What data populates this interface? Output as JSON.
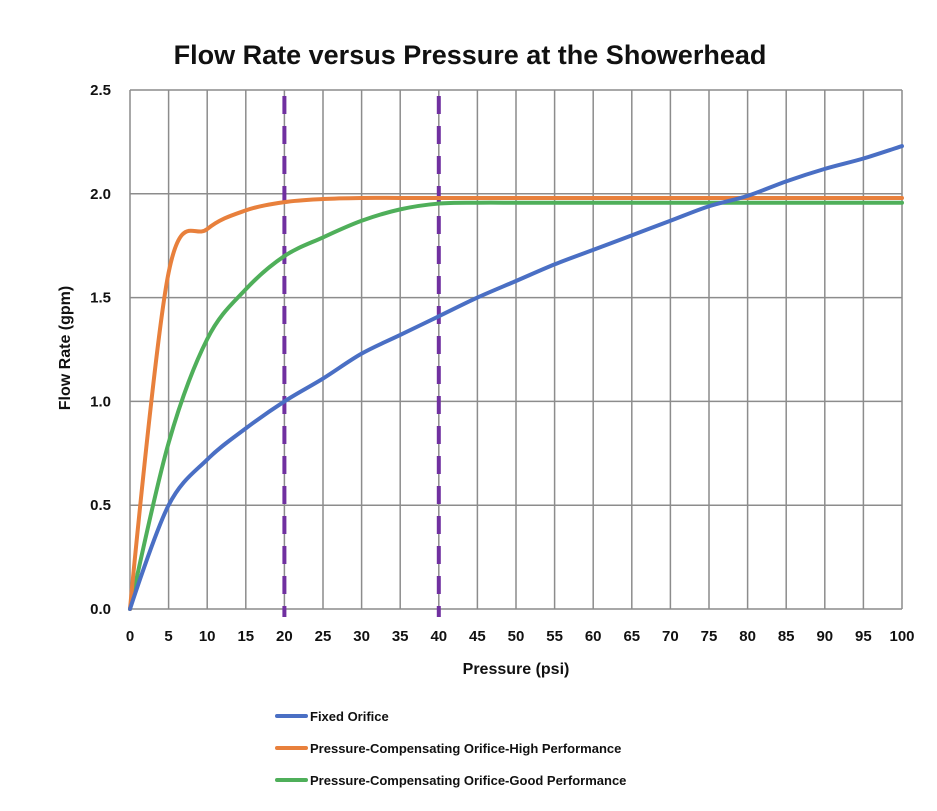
{
  "chart_data": {
    "type": "line",
    "title": "Flow Rate versus Pressure at the Showerhead",
    "xlabel": "Pressure (psi)",
    "ylabel": "Flow Rate (gpm)",
    "xlim": [
      0,
      100
    ],
    "ylim": [
      0,
      2.5
    ],
    "x_ticks": [
      "0",
      "5",
      "10",
      "15",
      "20",
      "25",
      "30",
      "35",
      "40",
      "45",
      "50",
      "55",
      "60",
      "65",
      "70",
      "75",
      "80",
      "85",
      "90",
      "95",
      "100"
    ],
    "y_ticks": [
      "0.0",
      "0.5",
      "1.0",
      "1.5",
      "2.0",
      "2.5"
    ],
    "grid": true,
    "legend_position": "bottom",
    "x": [
      0,
      5,
      10,
      15,
      20,
      25,
      30,
      35,
      40,
      45,
      50,
      55,
      60,
      65,
      70,
      75,
      80,
      85,
      90,
      95,
      100
    ],
    "series": [
      {
        "name": "Fixed Orifice",
        "color": "#4A6FC4",
        "style": "solid",
        "values": [
          0,
          0.5,
          0.72,
          0.87,
          1.0,
          1.11,
          1.23,
          1.32,
          1.41,
          1.5,
          1.58,
          1.66,
          1.73,
          1.8,
          1.87,
          1.94,
          1.99,
          2.06,
          2.12,
          2.17,
          2.23
        ]
      },
      {
        "name": "Pressure-Compensating Orifice-High Performance",
        "color": "#E8803C",
        "style": "solid",
        "values": [
          0,
          1.62,
          1.83,
          1.92,
          1.96,
          1.975,
          1.98,
          1.98,
          1.98,
          1.98,
          1.98,
          1.98,
          1.98,
          1.98,
          1.98,
          1.98,
          1.98,
          1.98,
          1.98,
          1.98,
          1.98
        ]
      },
      {
        "name": "Pressure-Compensating Orifice-Good Performance",
        "color": "#4FAF5A",
        "style": "solid",
        "values": [
          0,
          0.8,
          1.3,
          1.54,
          1.7,
          1.79,
          1.87,
          1.925,
          1.953,
          1.957,
          1.957,
          1.957,
          1.957,
          1.957,
          1.957,
          1.957,
          1.957,
          1.957,
          1.957,
          1.957,
          1.957
        ]
      }
    ],
    "reference_lines": [
      {
        "x": 20,
        "color": "#7030A0",
        "style": "dashed"
      },
      {
        "x": 40,
        "color": "#7030A0",
        "style": "dashed"
      }
    ]
  }
}
